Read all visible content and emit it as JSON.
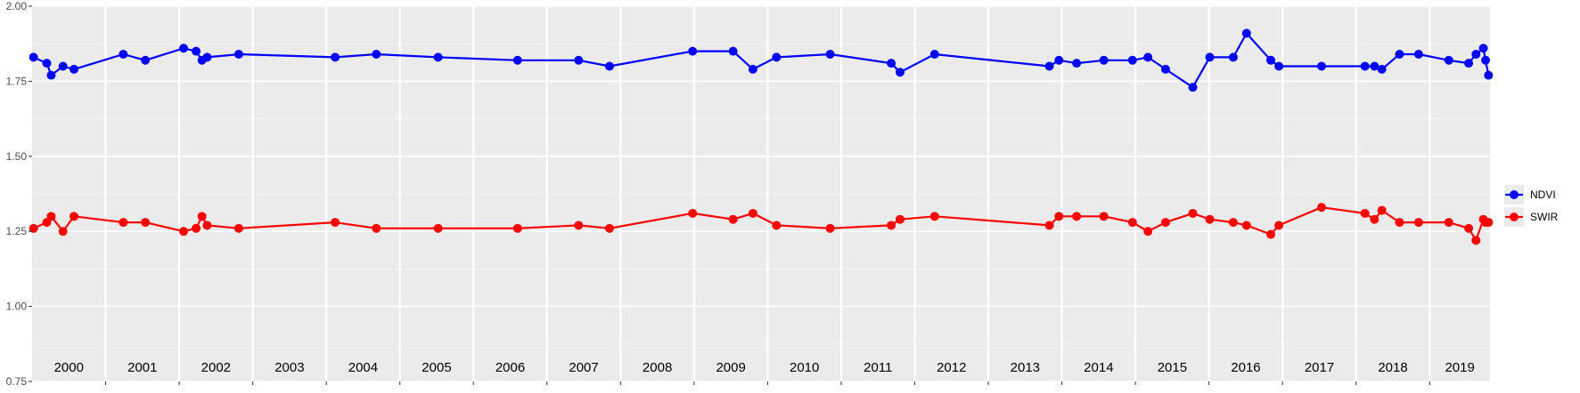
{
  "chart_data": {
    "type": "line",
    "title": "",
    "xlabel": "",
    "ylabel": "",
    "ylim": [
      0.75,
      2.0
    ],
    "y_ticks": [
      "0.75",
      "1.00",
      "1.25",
      "1.50",
      "1.75",
      "2.00"
    ],
    "x_range": [
      2000.0,
      2019.82
    ],
    "year_labels": [
      "2000",
      "2001",
      "2002",
      "2003",
      "2004",
      "2005",
      "2006",
      "2007",
      "2008",
      "2009",
      "2010",
      "2011",
      "2012",
      "2013",
      "2014",
      "2015",
      "2016",
      "2017",
      "2018",
      "2019"
    ],
    "grid": true,
    "legend_position": "right",
    "series": [
      {
        "name": "NDVI",
        "color": "#0000ff",
        "x": [
          2000.02,
          2000.2,
          2000.26,
          2000.42,
          2000.57,
          2001.24,
          2001.54,
          2002.06,
          2002.23,
          2002.31,
          2002.38,
          2002.81,
          2004.12,
          2004.68,
          2005.52,
          2006.6,
          2007.43,
          2007.85,
          2008.98,
          2009.53,
          2009.8,
          2010.12,
          2010.85,
          2011.68,
          2011.8,
          2012.27,
          2013.83,
          2013.96,
          2014.2,
          2014.57,
          2014.96,
          2015.17,
          2015.41,
          2015.78,
          2016.01,
          2016.33,
          2016.51,
          2016.84,
          2016.95,
          2017.53,
          2018.12,
          2018.25,
          2018.35,
          2018.59,
          2018.85,
          2019.26,
          2019.53,
          2019.63,
          2019.73,
          2019.76,
          2019.8
        ],
        "y": [
          1.83,
          1.81,
          1.77,
          1.8,
          1.79,
          1.84,
          1.82,
          1.86,
          1.85,
          1.82,
          1.83,
          1.84,
          1.83,
          1.84,
          1.83,
          1.82,
          1.82,
          1.8,
          1.85,
          1.85,
          1.79,
          1.83,
          1.84,
          1.81,
          1.78,
          1.84,
          1.8,
          1.82,
          1.81,
          1.82,
          1.82,
          1.83,
          1.79,
          1.73,
          1.83,
          1.83,
          1.91,
          1.82,
          1.8,
          1.8,
          1.8,
          1.8,
          1.79,
          1.84,
          1.84,
          1.82,
          1.81,
          1.84,
          1.86,
          1.82,
          1.77
        ]
      },
      {
        "name": "SWIR",
        "color": "#ff0000",
        "x": [
          2000.02,
          2000.2,
          2000.26,
          2000.42,
          2000.57,
          2001.24,
          2001.54,
          2002.06,
          2002.23,
          2002.31,
          2002.38,
          2002.81,
          2004.12,
          2004.68,
          2005.52,
          2006.6,
          2007.43,
          2007.85,
          2008.98,
          2009.53,
          2009.8,
          2010.12,
          2010.85,
          2011.68,
          2011.8,
          2012.27,
          2013.83,
          2013.96,
          2014.2,
          2014.57,
          2014.96,
          2015.17,
          2015.41,
          2015.78,
          2016.01,
          2016.33,
          2016.51,
          2016.84,
          2016.95,
          2017.53,
          2018.12,
          2018.25,
          2018.35,
          2018.59,
          2018.85,
          2019.26,
          2019.53,
          2019.63,
          2019.73,
          2019.76,
          2019.8
        ],
        "y": [
          1.26,
          1.28,
          1.3,
          1.25,
          1.3,
          1.28,
          1.28,
          1.25,
          1.26,
          1.3,
          1.27,
          1.26,
          1.28,
          1.26,
          1.26,
          1.26,
          1.27,
          1.26,
          1.31,
          1.29,
          1.31,
          1.27,
          1.26,
          1.27,
          1.29,
          1.3,
          1.27,
          1.3,
          1.3,
          1.3,
          1.28,
          1.25,
          1.28,
          1.31,
          1.29,
          1.28,
          1.27,
          1.24,
          1.27,
          1.33,
          1.31,
          1.29,
          1.32,
          1.28,
          1.28,
          1.28,
          1.26,
          1.22,
          1.29,
          1.28,
          1.28
        ]
      }
    ]
  }
}
